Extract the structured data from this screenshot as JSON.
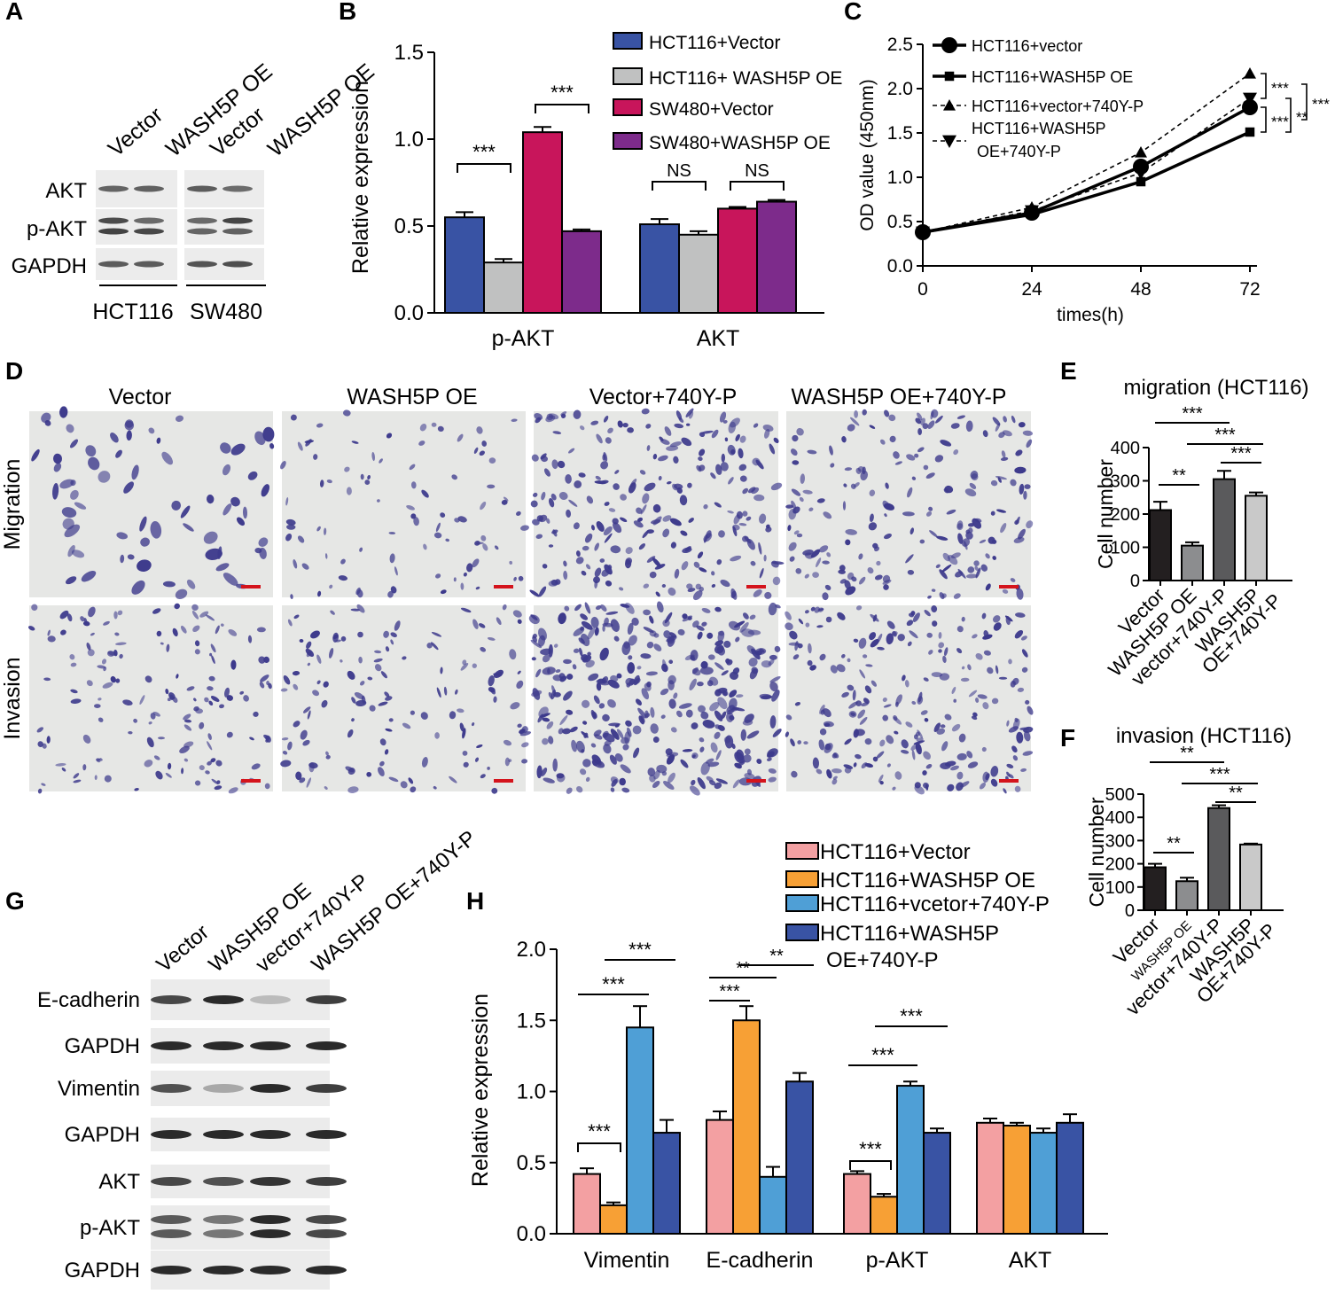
{
  "panel_letters": [
    "A",
    "B",
    "C",
    "D",
    "E",
    "F",
    "G",
    "H"
  ],
  "blot_A": {
    "lanes": [
      "Vector",
      "WASH5P OE",
      "Vector",
      "WASH5P OE"
    ],
    "rows": [
      "AKT",
      "p-AKT",
      "GAPDH"
    ],
    "groups": [
      "HCT116",
      "SW480"
    ]
  },
  "micro_D": {
    "columns": [
      "Vector",
      "WASH5P OE",
      "Vector+740Y-P",
      "WASH5P OE+740Y-P"
    ],
    "rows": [
      "Migration",
      "Invasion"
    ],
    "colors": {
      "background": "#e6e7e5",
      "stain": "#3d3a8c"
    }
  },
  "blot_G": {
    "lanes": [
      "Vector",
      "WASH5P OE",
      "vector+740Y-P",
      "WASH5P OE+740Y-P"
    ],
    "rows": [
      "E-cadherin",
      "GAPDH",
      "Vimentin",
      "GAPDH",
      "AKT",
      "p-AKT",
      "GAPDH"
    ]
  },
  "chart_data": [
    {
      "id": "B",
      "type": "bar",
      "categories": [
        "p-AKT",
        "AKT"
      ],
      "ylabel": "Relative expression",
      "ylim": [
        0,
        1.5
      ],
      "yticks": [
        "0.0",
        "0.5",
        "1.0",
        "1.5"
      ],
      "legend": {
        "placement": "top-right"
      },
      "series": [
        {
          "name": "HCT116+Vector",
          "color": "#3953a4",
          "values": [
            0.55,
            0.51
          ],
          "errors": [
            0.03,
            0.03
          ]
        },
        {
          "name": "HCT116+ WASH5P OE",
          "color": "#c0c1c1",
          "values": [
            0.29,
            0.45
          ],
          "errors": [
            0.02,
            0.02
          ]
        },
        {
          "name": "SW480+Vector",
          "color": "#c8155b",
          "values": [
            1.04,
            0.6
          ],
          "errors": [
            0.03,
            0.01
          ]
        },
        {
          "name": "SW480+WASH5P OE",
          "color": "#7d2b8b",
          "values": [
            0.47,
            0.64
          ],
          "errors": [
            0.01,
            0.01
          ]
        }
      ],
      "annotations": [
        {
          "text": "***",
          "category": 0,
          "from": 0,
          "to": 1
        },
        {
          "text": "***",
          "category": 0,
          "from": 2,
          "to": 3
        },
        {
          "text": "NS",
          "category": 1,
          "from": 0,
          "to": 1
        },
        {
          "text": "NS",
          "category": 1,
          "from": 2,
          "to": 3
        }
      ]
    },
    {
      "id": "C",
      "type": "line",
      "x": [
        0,
        24,
        48,
        72
      ],
      "xticks": [
        "0",
        "24",
        "48",
        "72"
      ],
      "xlabel": "times(h)",
      "ylabel": "OD value (450nm)",
      "ylim": [
        0,
        2.5
      ],
      "yticks": [
        "0.0",
        "0.5",
        "1.0",
        "1.5",
        "2.0",
        "2.5"
      ],
      "legend": {
        "placement": "top-left"
      },
      "series": [
        {
          "name": "HCT116+vector",
          "marker": "circle",
          "dash": false,
          "values": [
            0.38,
            0.6,
            1.12,
            1.79
          ]
        },
        {
          "name": "HCT116+WASH5P OE",
          "marker": "square",
          "dash": false,
          "values": [
            0.38,
            0.58,
            0.95,
            1.51
          ]
        },
        {
          "name": "HCT116+vector+740Y-P",
          "marker": "triangle-up",
          "dash": true,
          "values": [
            0.38,
            0.66,
            1.28,
            2.17
          ]
        },
        {
          "name": "HCT116+WASH5P OE+740Y-P",
          "legend_lines": [
            "HCT116+WASH5P",
            "OE+740Y-P"
          ],
          "marker": "triangle-down",
          "dash": true,
          "values": [
            0.38,
            0.62,
            1.05,
            1.89
          ]
        }
      ],
      "annotations": [
        {
          "text": "***",
          "from": 2,
          "to": 3
        },
        {
          "text": "***",
          "from": 0,
          "to": 2
        },
        {
          "text": "***",
          "from": 1,
          "to": 3
        },
        {
          "text": "**",
          "from": 0,
          "to": 1
        }
      ]
    },
    {
      "id": "E",
      "type": "bar",
      "title": "migration (HCT116)",
      "ylabel": "Cell number",
      "ylim": [
        0,
        400
      ],
      "yticks": [
        "0",
        "100",
        "200",
        "300",
        "400"
      ],
      "categories": [
        "Vector",
        "WASH5P OE",
        "vector+740Y-P",
        "WASH5P OE+740Y-P"
      ],
      "category_lines": [
        [
          "Vector"
        ],
        [
          "WASH5P OE"
        ],
        [
          "vector+740Y-P"
        ],
        [
          "WASH5P",
          "OE+740Y-P"
        ]
      ],
      "colors": [
        "#231f20",
        "#8c8d8f",
        "#5a5a5c",
        "#c9c9c9"
      ],
      "values": [
        212,
        105,
        305,
        255
      ],
      "errors": [
        25,
        10,
        25,
        10
      ],
      "annotations": [
        {
          "text": "***",
          "from": 0,
          "to": 2
        },
        {
          "text": "***",
          "from": 1,
          "to": 3
        },
        {
          "text": "***",
          "from": 2,
          "to": 3
        },
        {
          "text": "**",
          "from": 0,
          "to": 1
        }
      ]
    },
    {
      "id": "F",
      "type": "bar",
      "title": "invasion (HCT116)",
      "ylabel": "Cell number",
      "ylim": [
        0,
        500
      ],
      "yticks": [
        "0",
        "100",
        "200",
        "300",
        "400",
        "500"
      ],
      "categories": [
        "Vector",
        "WASH5P OE",
        "vector+740Y-P",
        "WASH5P OE+740Y-P"
      ],
      "category_lines": [
        [
          "Vector"
        ],
        [
          "WASH5P OE"
        ],
        [
          "vector+740Y-P"
        ],
        [
          "WASH5P",
          "OE+740Y-P"
        ]
      ],
      "colors": [
        "#231f20",
        "#8c8d8f",
        "#5a5a5c",
        "#c9c9c9"
      ],
      "values": [
        185,
        125,
        440,
        283
      ],
      "errors": [
        15,
        15,
        12,
        4
      ],
      "annotations": [
        {
          "text": "**",
          "from": 0,
          "to": 2
        },
        {
          "text": "***",
          "from": 1,
          "to": 3
        },
        {
          "text": "**",
          "from": 2,
          "to": 3
        },
        {
          "text": "**",
          "from": 0,
          "to": 1
        }
      ]
    },
    {
      "id": "H",
      "type": "bar",
      "categories": [
        "Vimentin",
        "E-cadherin",
        "p-AKT",
        "AKT"
      ],
      "ylabel": "Relative expression",
      "ylim": [
        0,
        2.0
      ],
      "yticks": [
        "0.0",
        "0.5",
        "1.0",
        "1.5",
        "2.0"
      ],
      "legend": {
        "placement": "top-right"
      },
      "series": [
        {
          "name": "HCT116+Vector",
          "color": "#f3a0a2",
          "values": [
            0.42,
            0.8,
            0.42,
            0.78
          ],
          "errors": [
            0.04,
            0.06,
            0.02,
            0.03
          ]
        },
        {
          "name": "HCT116+WASH5P OE",
          "color": "#f7a035",
          "values": [
            0.2,
            1.5,
            0.26,
            0.76
          ],
          "errors": [
            0.02,
            0.1,
            0.02,
            0.02
          ]
        },
        {
          "name": "HCT116+vcetor+740Y-P",
          "color": "#4f9fd6",
          "values": [
            1.45,
            0.4,
            1.04,
            0.71
          ],
          "errors": [
            0.15,
            0.07,
            0.03,
            0.03
          ]
        },
        {
          "name": "HCT116+WASH5P OE+740Y-P",
          "legend_lines": [
            "HCT116+WASH5P",
            "OE+740Y-P"
          ],
          "color": "#3953a4",
          "values": [
            0.71,
            1.07,
            0.71,
            0.78
          ],
          "errors": [
            0.09,
            0.06,
            0.03,
            0.06
          ]
        }
      ],
      "annotations": [
        {
          "text": "***",
          "category": 0,
          "from": 0,
          "to": 1
        },
        {
          "text": "***",
          "category": 0,
          "from": 0,
          "to": 2
        },
        {
          "text": "***",
          "category": 0,
          "from": 1,
          "to": 3
        },
        {
          "text": "***",
          "category": 1,
          "from": 0,
          "to": 1
        },
        {
          "text": "**",
          "category": 1,
          "from": 0,
          "to": 2
        },
        {
          "text": "**",
          "category": 1,
          "from": 1,
          "to": 3
        },
        {
          "text": "***",
          "category": 2,
          "from": 0,
          "to": 1
        },
        {
          "text": "***",
          "category": 2,
          "from": 0,
          "to": 2
        },
        {
          "text": "***",
          "category": 2,
          "from": 1,
          "to": 3
        }
      ]
    }
  ]
}
